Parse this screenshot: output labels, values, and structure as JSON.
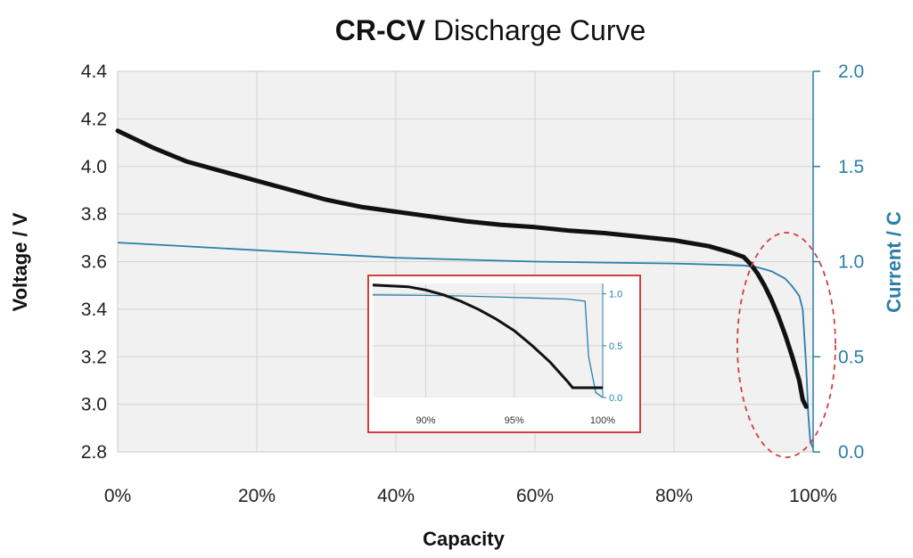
{
  "chart_data": {
    "type": "line",
    "title_bold": "CR-CV",
    "title_rest": " Discharge Curve",
    "xlabel": "Capacity",
    "ylabel_left": "Voltage / V",
    "ylabel_right": "Current / C",
    "x_ticks": [
      "0%",
      "20%",
      "40%",
      "60%",
      "80%",
      "100%"
    ],
    "y_left_ticks": [
      "4.4",
      "4.2",
      "4.0",
      "3.8",
      "3.6",
      "3.4",
      "3.2",
      "3.0",
      "2.8"
    ],
    "y_right_ticks": [
      "2.0",
      "1.5",
      "1.0",
      "0.5",
      "0.0"
    ],
    "xlim": [
      0,
      100
    ],
    "ylim_left": [
      2.8,
      4.4
    ],
    "ylim_right": [
      0,
      2.0
    ],
    "grid": true,
    "colors": {
      "voltage": "#111111",
      "current": "#2a7fa8",
      "highlight": "#d04040",
      "inset_border": "#d04040"
    },
    "series": [
      {
        "name": "Voltage",
        "axis": "left",
        "x": [
          0,
          5,
          10,
          15,
          20,
          25,
          30,
          35,
          40,
          45,
          50,
          55,
          60,
          65,
          70,
          75,
          80,
          85,
          88,
          90,
          91,
          92,
          93,
          94,
          95,
          96,
          97,
          98,
          98.5,
          99
        ],
        "y": [
          4.15,
          4.08,
          4.02,
          3.98,
          3.94,
          3.9,
          3.86,
          3.83,
          3.81,
          3.79,
          3.77,
          3.755,
          3.745,
          3.73,
          3.72,
          3.705,
          3.69,
          3.665,
          3.64,
          3.62,
          3.59,
          3.55,
          3.5,
          3.44,
          3.37,
          3.29,
          3.2,
          3.1,
          3.02,
          2.99
        ]
      },
      {
        "name": "Current",
        "axis": "right",
        "x": [
          0,
          10,
          20,
          30,
          40,
          50,
          60,
          70,
          80,
          85,
          90,
          92,
          94,
          96,
          97,
          98,
          98.5,
          99,
          99.3,
          99.6,
          100
        ],
        "y": [
          1.1,
          1.08,
          1.06,
          1.04,
          1.02,
          1.01,
          1.0,
          0.995,
          0.99,
          0.985,
          0.98,
          0.97,
          0.95,
          0.91,
          0.87,
          0.82,
          0.75,
          0.45,
          0.2,
          0.05,
          0.02
        ]
      }
    ],
    "inset": {
      "x_ticks": [
        "90%",
        "95%",
        "100%"
      ],
      "y_right_ticks": [
        "1.0",
        "0.5",
        "0.0"
      ],
      "xlim": [
        87,
        100
      ],
      "ylim_right": [
        0,
        1.1
      ],
      "ylim_left": [
        2.95,
        3.65
      ],
      "voltage": {
        "x": [
          87,
          89,
          90,
          91,
          92,
          93,
          94,
          95,
          96,
          97,
          98,
          98.3,
          99,
          100
        ],
        "y": [
          3.64,
          3.63,
          3.61,
          3.58,
          3.54,
          3.49,
          3.43,
          3.36,
          3.27,
          3.17,
          3.05,
          3.01,
          3.01,
          3.01
        ]
      },
      "current": {
        "x": [
          87,
          90,
          92,
          94,
          96,
          98,
          99,
          99.2,
          99.6,
          100
        ],
        "y": [
          0.99,
          0.985,
          0.98,
          0.97,
          0.96,
          0.95,
          0.93,
          0.4,
          0.05,
          0.0
        ]
      }
    }
  }
}
